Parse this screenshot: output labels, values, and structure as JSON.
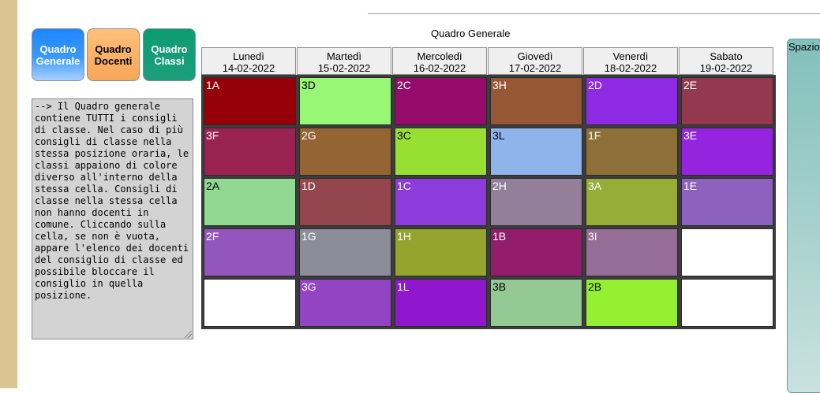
{
  "tabs": {
    "generale": "Quadro\nGenerale",
    "docenti": "Quadro\nDocenti",
    "classi": "Quadro\nClassi"
  },
  "info_text": "--> Il Quadro generale contiene TUTTI i consigli di classe. Nel caso di più consigli di classe nella stessa posizione oraria, le classi appaiono di colore diverso all'interno della stessa cella. Consigli di classe nella stessa cella non hanno docenti in comune. Cliccando sulla cella, se non è vuota, appare l'elenco dei docenti del consiglio di classe ed possibile bloccare il consiglio in quella posizione.",
  "grid_title": "Quadro Generale",
  "days": [
    {
      "name": "Lunedì",
      "date": "14-02-2022"
    },
    {
      "name": "Martedì",
      "date": "15-02-2022"
    },
    {
      "name": "Mercoledì",
      "date": "16-02-2022"
    },
    {
      "name": "Giovedì",
      "date": "17-02-2022"
    },
    {
      "name": "Venerdì",
      "date": "18-02-2022"
    },
    {
      "name": "Sabato",
      "date": "19-02-2022"
    }
  ],
  "rows": [
    [
      {
        "label": "1A",
        "color": "#960008",
        "text": "light"
      },
      {
        "label": "3D",
        "color": "#96f875",
        "text": "dark"
      },
      {
        "label": "2C",
        "color": "#960b69",
        "text": "light"
      },
      {
        "label": "3H",
        "color": "#955735",
        "text": "light"
      },
      {
        "label": "2D",
        "color": "#8e2ae3",
        "text": "light"
      },
      {
        "label": "2E",
        "color": "#94384f",
        "text": "light"
      }
    ],
    [
      {
        "label": "3F",
        "color": "#9a2253",
        "text": "light"
      },
      {
        "label": "2G",
        "color": "#956433",
        "text": "light"
      },
      {
        "label": "3C",
        "color": "#97e032",
        "text": "dark"
      },
      {
        "label": "3L",
        "color": "#8fb4ec",
        "text": "dark"
      },
      {
        "label": "1F",
        "color": "#8d7038",
        "text": "light"
      },
      {
        "label": "3E",
        "color": "#9424de",
        "text": "light"
      }
    ],
    [
      {
        "label": "2A",
        "color": "#91d992",
        "text": "dark"
      },
      {
        "label": "1D",
        "color": "#94464e",
        "text": "light"
      },
      {
        "label": "1C",
        "color": "#8e3bdb",
        "text": "light"
      },
      {
        "label": "2H",
        "color": "#947f9a",
        "text": "light"
      },
      {
        "label": "3A",
        "color": "#98ad37",
        "text": "light"
      },
      {
        "label": "1E",
        "color": "#8d62bf",
        "text": "light"
      }
    ],
    [
      {
        "label": "2F",
        "color": "#9256bd",
        "text": "light"
      },
      {
        "label": "1G",
        "color": "#8c8d98",
        "text": "light"
      },
      {
        "label": "1H",
        "color": "#94a42c",
        "text": "light"
      },
      {
        "label": "1B",
        "color": "#941c6c",
        "text": "light"
      },
      {
        "label": "3I",
        "color": "#956d97",
        "text": "light"
      },
      {
        "label": "",
        "color": "#ffffff",
        "text": "dark"
      }
    ],
    [
      {
        "label": "",
        "color": "#ffffff",
        "text": "dark"
      },
      {
        "label": "3G",
        "color": "#9344c2",
        "text": "light"
      },
      {
        "label": "1L",
        "color": "#8f18cf",
        "text": "light"
      },
      {
        "label": "3B",
        "color": "#94c994",
        "text": "dark"
      },
      {
        "label": "2B",
        "color": "#95f031",
        "text": "dark"
      },
      {
        "label": "",
        "color": "#ffffff",
        "text": "dark"
      }
    ]
  ],
  "side_panel_title": "Spazio"
}
